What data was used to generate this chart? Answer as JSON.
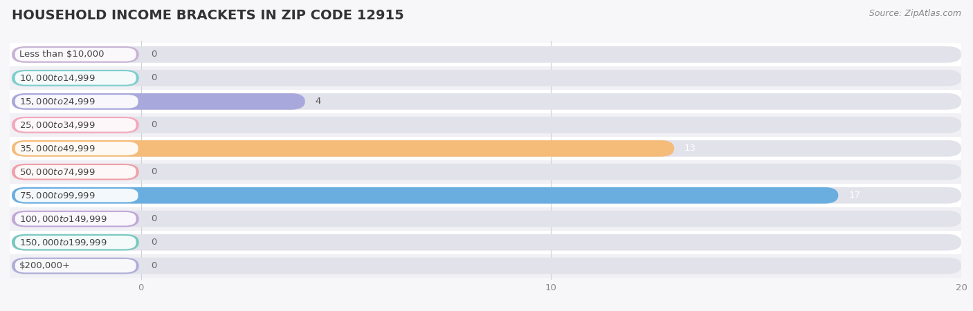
{
  "title": "HOUSEHOLD INCOME BRACKETS IN ZIP CODE 12915",
  "source": "Source: ZipAtlas.com",
  "categories": [
    "Less than $10,000",
    "$10,000 to $14,999",
    "$15,000 to $24,999",
    "$25,000 to $34,999",
    "$35,000 to $49,999",
    "$50,000 to $74,999",
    "$75,000 to $99,999",
    "$100,000 to $149,999",
    "$150,000 to $199,999",
    "$200,000+"
  ],
  "values": [
    0,
    0,
    4,
    0,
    13,
    0,
    17,
    0,
    0,
    0
  ],
  "bar_colors": [
    "#c8b4d4",
    "#7ecece",
    "#a8a8dc",
    "#f4a8bc",
    "#f5bb78",
    "#f0a0a8",
    "#6aaee0",
    "#c0a8d8",
    "#78c8be",
    "#b0aed8"
  ],
  "background_color": "#f7f7fa",
  "row_colors": [
    "#ffffff",
    "#f0f0f5"
  ],
  "pill_bg_color": "#e2e2ea",
  "label_box_color": "#ffffff",
  "xlim_min": -3.2,
  "xlim_max": 20,
  "data_zero": 0,
  "data_max": 20,
  "xticks": [
    0,
    10,
    20
  ],
  "bar_height": 0.7,
  "title_fontsize": 14,
  "label_fontsize": 9.5,
  "value_fontsize": 9.5,
  "source_fontsize": 9,
  "grid_color": "#d0d0d8",
  "tick_color": "#888888"
}
